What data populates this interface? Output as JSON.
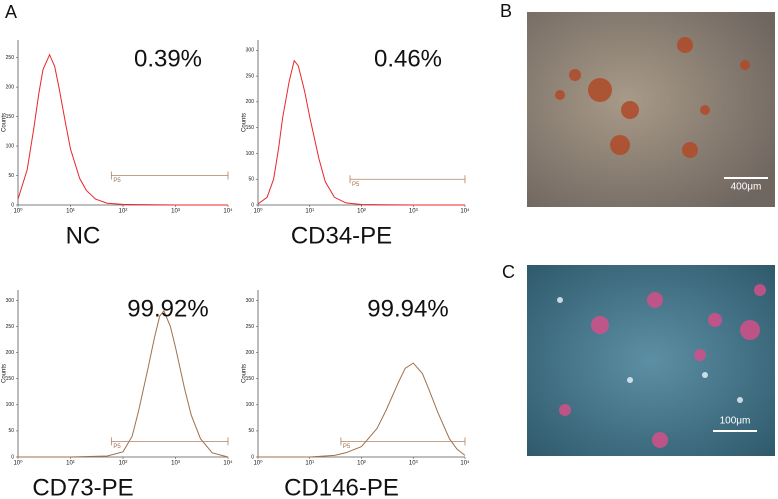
{
  "panel_label": "A",
  "chart_data": [
    {
      "type": "line",
      "annotation": "0.39%",
      "caption": "NC",
      "ylabel": "Counts",
      "color": "#e8262a",
      "xscale": "log",
      "x": [
        1,
        1.5,
        2,
        2.5,
        3,
        4,
        5,
        6,
        8,
        10,
        15,
        20,
        30,
        50,
        100,
        1000,
        10000
      ],
      "values": [
        10,
        60,
        130,
        190,
        230,
        255,
        235,
        200,
        140,
        95,
        45,
        25,
        10,
        3,
        1,
        0,
        0
      ],
      "xlim": [
        1,
        10000
      ],
      "ylim": [
        0,
        280
      ],
      "xticks": [
        {
          "value": 1,
          "label": "10⁰"
        },
        {
          "value": 10,
          "label": "10¹"
        },
        {
          "value": 100,
          "label": "10²"
        },
        {
          "value": 1000,
          "label": "10³"
        },
        {
          "value": 10000,
          "label": "10⁴"
        }
      ],
      "yticks": [
        0,
        50,
        100,
        150,
        200,
        250
      ],
      "gate": {
        "label": "P5",
        "range": [
          60,
          10000
        ],
        "y": 50
      }
    },
    {
      "type": "line",
      "annotation": "0.46%",
      "caption": "CD34-PE",
      "ylabel": "Counts",
      "color": "#e8262a",
      "xscale": "log",
      "x": [
        1,
        1.5,
        2,
        2.5,
        3,
        4,
        5,
        6,
        8,
        10,
        15,
        20,
        30,
        50,
        100,
        1000,
        10000
      ],
      "values": [
        2,
        15,
        50,
        110,
        170,
        240,
        280,
        270,
        220,
        170,
        90,
        45,
        15,
        4,
        1,
        0,
        0
      ],
      "xlim": [
        1,
        10000
      ],
      "ylim": [
        0,
        320
      ],
      "xticks": [
        {
          "value": 1,
          "label": "10⁰"
        },
        {
          "value": 10,
          "label": "10¹"
        },
        {
          "value": 100,
          "label": "10²"
        },
        {
          "value": 1000,
          "label": "10³"
        },
        {
          "value": 10000,
          "label": "10⁴"
        }
      ],
      "yticks": [
        0,
        50,
        100,
        150,
        200,
        250,
        300
      ],
      "gate": {
        "label": "P5",
        "range": [
          60,
          10000
        ],
        "y": 50
      }
    },
    {
      "type": "line",
      "annotation": "99.92%",
      "caption": "CD73-PE",
      "ylabel": "Counts",
      "color": "#a0704a",
      "xscale": "log",
      "x": [
        1,
        10,
        50,
        100,
        150,
        200,
        300,
        400,
        500,
        600,
        800,
        1000,
        1500,
        2000,
        3000,
        5000,
        10000
      ],
      "values": [
        0,
        0,
        2,
        10,
        40,
        90,
        170,
        230,
        270,
        280,
        250,
        210,
        130,
        80,
        35,
        8,
        0
      ],
      "xlim": [
        1,
        10000
      ],
      "ylim": [
        0,
        320
      ],
      "xticks": [
        {
          "value": 1,
          "label": "10⁰"
        },
        {
          "value": 10,
          "label": "10¹"
        },
        {
          "value": 100,
          "label": "10²"
        },
        {
          "value": 1000,
          "label": "10³"
        },
        {
          "value": 10000,
          "label": "10⁴"
        }
      ],
      "yticks": [
        0,
        50,
        100,
        150,
        200,
        250,
        300
      ],
      "gate": {
        "label": "P5",
        "range": [
          60,
          10000
        ],
        "y": 30
      }
    },
    {
      "type": "line",
      "annotation": "99.94%",
      "caption": "CD146-PE",
      "ylabel": "Counts",
      "color": "#a0704a",
      "xscale": "log",
      "x": [
        1,
        10,
        30,
        50,
        100,
        200,
        300,
        500,
        700,
        1000,
        1500,
        2000,
        3000,
        5000,
        7000,
        10000
      ],
      "values": [
        0,
        0,
        3,
        8,
        20,
        55,
        90,
        140,
        170,
        180,
        160,
        130,
        85,
        35,
        15,
        3
      ],
      "xlim": [
        1,
        10000
      ],
      "ylim": [
        0,
        320
      ],
      "xticks": [
        {
          "value": 1,
          "label": "10⁰"
        },
        {
          "value": 10,
          "label": "10¹"
        },
        {
          "value": 100,
          "label": "10²"
        },
        {
          "value": 1000,
          "label": "10³"
        },
        {
          "value": 10000,
          "label": "10⁴"
        }
      ],
      "yticks": [
        0,
        50,
        100,
        150,
        200,
        250,
        300
      ],
      "gate": {
        "label": "P5",
        "range": [
          40,
          10000
        ],
        "y": 30
      }
    }
  ],
  "images": [
    {
      "label": "B",
      "scale_bar": "400μm"
    },
    {
      "label": "C",
      "scale_bar": "100μm"
    }
  ]
}
